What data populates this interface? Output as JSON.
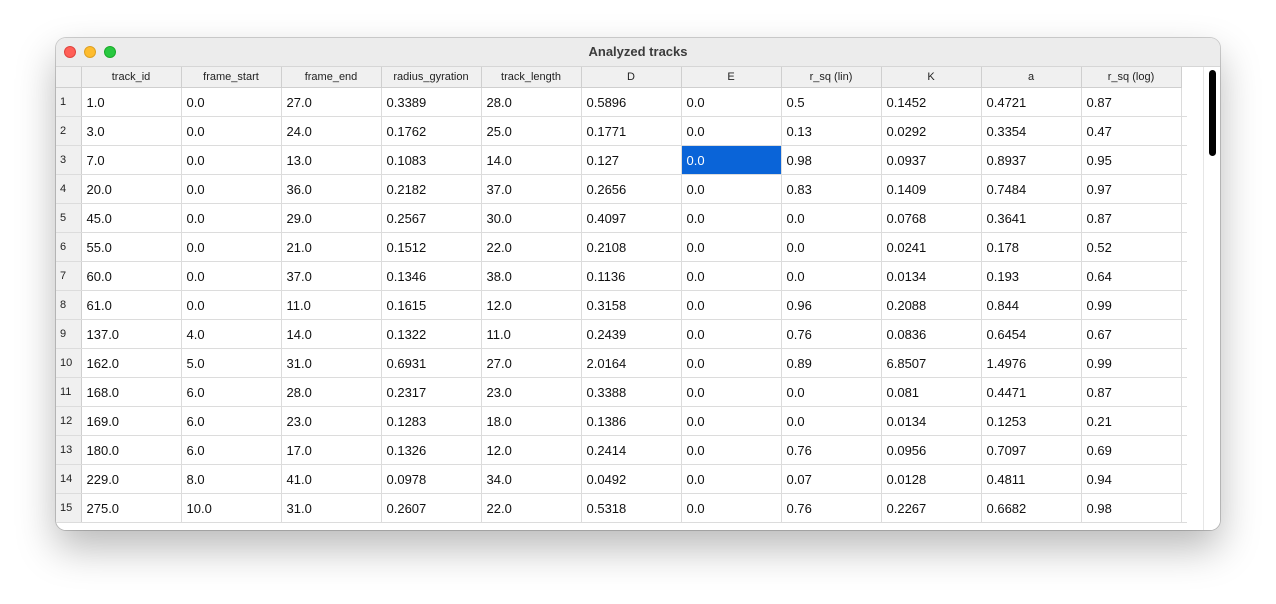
{
  "window": {
    "title": "Analyzed tracks"
  },
  "table": {
    "columns": [
      "track_id",
      "frame_start",
      "frame_end",
      "radius_gyration",
      "track_length",
      "D",
      "E",
      "r_sq (lin)",
      "K",
      "a",
      "r_sq (log)"
    ],
    "selected_cell": {
      "row": 2,
      "col": 6
    },
    "rows": [
      {
        "num": "1",
        "cells": [
          "1.0",
          "0.0",
          "27.0",
          "0.3389",
          "28.0",
          "0.5896",
          "0.0",
          "0.5",
          "0.1452",
          "0.4721",
          "0.87"
        ]
      },
      {
        "num": "2",
        "cells": [
          "3.0",
          "0.0",
          "24.0",
          "0.1762",
          "25.0",
          "0.1771",
          "0.0",
          "0.13",
          "0.0292",
          "0.3354",
          "0.47"
        ]
      },
      {
        "num": "3",
        "cells": [
          "7.0",
          "0.0",
          "13.0",
          "0.1083",
          "14.0",
          "0.127",
          "0.0",
          "0.98",
          "0.0937",
          "0.8937",
          "0.95"
        ]
      },
      {
        "num": "4",
        "cells": [
          "20.0",
          "0.0",
          "36.0",
          "0.2182",
          "37.0",
          "0.2656",
          "0.0",
          "0.83",
          "0.1409",
          "0.7484",
          "0.97"
        ]
      },
      {
        "num": "5",
        "cells": [
          "45.0",
          "0.0",
          "29.0",
          "0.2567",
          "30.0",
          "0.4097",
          "0.0",
          "0.0",
          "0.0768",
          "0.3641",
          "0.87"
        ]
      },
      {
        "num": "6",
        "cells": [
          "55.0",
          "0.0",
          "21.0",
          "0.1512",
          "22.0",
          "0.2108",
          "0.0",
          "0.0",
          "0.0241",
          "0.178",
          "0.52"
        ]
      },
      {
        "num": "7",
        "cells": [
          "60.0",
          "0.0",
          "37.0",
          "0.1346",
          "38.0",
          "0.1136",
          "0.0",
          "0.0",
          "0.0134",
          "0.193",
          "0.64"
        ]
      },
      {
        "num": "8",
        "cells": [
          "61.0",
          "0.0",
          "11.0",
          "0.1615",
          "12.0",
          "0.3158",
          "0.0",
          "0.96",
          "0.2088",
          "0.844",
          "0.99"
        ]
      },
      {
        "num": "9",
        "cells": [
          "137.0",
          "4.0",
          "14.0",
          "0.1322",
          "11.0",
          "0.2439",
          "0.0",
          "0.76",
          "0.0836",
          "0.6454",
          "0.67"
        ]
      },
      {
        "num": "10",
        "cells": [
          "162.0",
          "5.0",
          "31.0",
          "0.6931",
          "27.0",
          "2.0164",
          "0.0",
          "0.89",
          "6.8507",
          "1.4976",
          "0.99"
        ]
      },
      {
        "num": "11",
        "cells": [
          "168.0",
          "6.0",
          "28.0",
          "0.2317",
          "23.0",
          "0.3388",
          "0.0",
          "0.0",
          "0.081",
          "0.4471",
          "0.87"
        ]
      },
      {
        "num": "12",
        "cells": [
          "169.0",
          "6.0",
          "23.0",
          "0.1283",
          "18.0",
          "0.1386",
          "0.0",
          "0.0",
          "0.0134",
          "0.1253",
          "0.21"
        ]
      },
      {
        "num": "13",
        "cells": [
          "180.0",
          "6.0",
          "17.0",
          "0.1326",
          "12.0",
          "0.2414",
          "0.0",
          "0.76",
          "0.0956",
          "0.7097",
          "0.69"
        ]
      },
      {
        "num": "14",
        "cells": [
          "229.0",
          "8.0",
          "41.0",
          "0.0978",
          "34.0",
          "0.0492",
          "0.0",
          "0.07",
          "0.0128",
          "0.4811",
          "0.94"
        ]
      },
      {
        "num": "15",
        "cells": [
          "275.0",
          "10.0",
          "31.0",
          "0.2607",
          "22.0",
          "0.5318",
          "0.0",
          "0.76",
          "0.2267",
          "0.6682",
          "0.98"
        ]
      }
    ]
  }
}
